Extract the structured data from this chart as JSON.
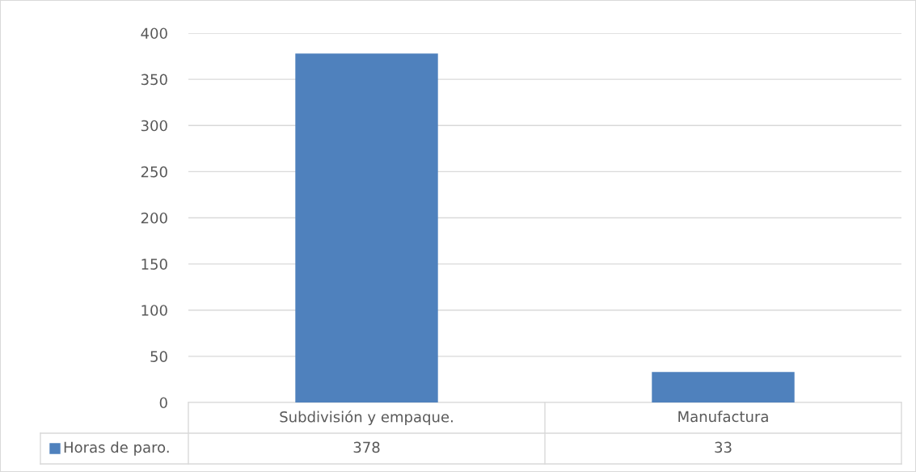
{
  "chart_data": {
    "type": "bar",
    "categories": [
      "Subdivisión y empaque.",
      "Manufactura"
    ],
    "series": [
      {
        "name": "Horas de paro.",
        "color": "#4f81bd",
        "values": [
          378,
          33
        ]
      }
    ],
    "ylim": [
      0,
      400
    ],
    "yticks": [
      0,
      50,
      100,
      150,
      200,
      250,
      300,
      350,
      400
    ],
    "grid": "y",
    "legend": "bottom",
    "data_labels": true
  }
}
